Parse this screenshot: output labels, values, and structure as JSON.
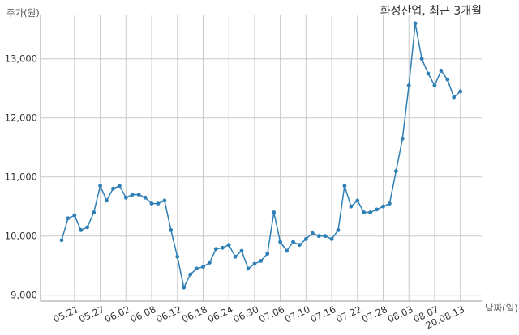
{
  "chart_data": {
    "type": "line",
    "title": "화성산업, 최근 3개월",
    "ylabel": "주가(원)",
    "xlabel": "날짜(일)",
    "ylim": [
      8900,
      13750
    ],
    "yticks": [
      9000,
      10000,
      11000,
      12000,
      13000
    ],
    "ytick_labels": [
      "9,000",
      "10,000",
      "11,000",
      "12,000",
      "13,000"
    ],
    "x_tick_labels": [
      "05.21",
      "05.27",
      "06.02",
      "06.08",
      "06.12",
      "06.18",
      "06.24",
      "06.30",
      "07.06",
      "07.10",
      "07.16",
      "07.22",
      "07.28",
      "08.03",
      "08.07",
      "20.08.13"
    ],
    "x_tick_index": [
      2,
      6,
      10,
      14,
      18,
      22,
      26,
      30,
      34,
      38,
      42,
      46,
      50,
      54,
      58,
      62
    ],
    "grid": true,
    "line_color": "#2e7fb5",
    "series": [
      {
        "values": [
          9930,
          10300,
          10350,
          10100,
          10150,
          10400,
          10850,
          10600,
          10800,
          10850,
          10650,
          10700,
          10700,
          10650,
          10550,
          10550,
          10600,
          10100,
          9650,
          9130,
          9350,
          9450,
          9480,
          9550,
          9780,
          9800,
          9850,
          9650,
          9750,
          9450,
          9530,
          9580,
          9700,
          10400,
          9900,
          9750,
          9900,
          9850,
          9950,
          10050,
          10000,
          10000,
          9950,
          10100,
          10850,
          10500,
          10600,
          10400,
          10400,
          10450,
          10500,
          10550,
          11100,
          11650,
          12550,
          13600,
          13000,
          12750,
          12550,
          12800,
          12650,
          12350,
          12450
        ]
      }
    ]
  }
}
